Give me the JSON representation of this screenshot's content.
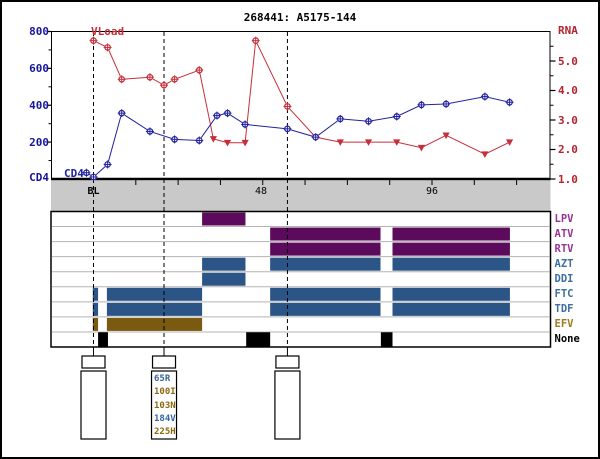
{
  "title": "268441: A5175-144",
  "chart_data": {
    "type": "line",
    "title": "268441: A5175-144",
    "x_axis": {
      "unit": "weeks",
      "labeled_ticks": [
        {
          "week": 0,
          "label": "BL"
        },
        {
          "week": 48,
          "label": "48"
        },
        {
          "week": 96,
          "label": "96"
        }
      ],
      "minor_tick_weeks": [
        12,
        24,
        36,
        48,
        60,
        72,
        84,
        96,
        108,
        120
      ],
      "sample_weeks": [
        0,
        20,
        55
      ]
    },
    "left_axis": {
      "name": "CD4",
      "range": [
        0,
        800
      ],
      "major_ticks": [
        200,
        400,
        600,
        800
      ],
      "minor_ticks": [
        100,
        300,
        500,
        700
      ],
      "color": "#16169a"
    },
    "right_axis": {
      "name": "RNA",
      "range": [
        1,
        6
      ],
      "major_ticks": [
        1,
        2,
        3,
        4,
        5
      ],
      "minor_ticks": [
        1.5,
        2.5,
        3.5,
        4.5,
        5.5
      ],
      "color": "#b5232f"
    },
    "series": [
      {
        "name": "CD4",
        "axis": "left",
        "color": "#2222a0",
        "marker": "open-circle-cross",
        "points": [
          {
            "week": -2,
            "value": 34
          },
          {
            "week": 0,
            "value": 11
          },
          {
            "week": 4,
            "value": 79
          },
          {
            "week": 8,
            "value": 357
          },
          {
            "week": 16,
            "value": 258
          },
          {
            "week": 23,
            "value": 215
          },
          {
            "week": 30,
            "value": 209
          },
          {
            "week": 35,
            "value": 344
          },
          {
            "week": 38,
            "value": 357
          },
          {
            "week": 43,
            "value": 296
          },
          {
            "week": 55,
            "value": 272
          },
          {
            "week": 63,
            "value": 227
          },
          {
            "week": 70,
            "value": 326
          },
          {
            "week": 78,
            "value": 313
          },
          {
            "week": 86,
            "value": 339
          },
          {
            "week": 93,
            "value": 402
          },
          {
            "week": 100,
            "value": 407
          },
          {
            "week": 111,
            "value": 447
          },
          {
            "week": 118,
            "value": 416
          }
        ]
      },
      {
        "name": "VLoad",
        "axis": "right",
        "color": "#c62f3a",
        "points": [
          {
            "week": 0,
            "value": 5.69,
            "marker": "circle"
          },
          {
            "week": 4,
            "value": 5.46,
            "marker": "circle"
          },
          {
            "week": 8,
            "value": 4.38,
            "marker": "circle"
          },
          {
            "week": 16,
            "value": 4.45,
            "marker": "circle"
          },
          {
            "week": 20,
            "value": 4.18,
            "marker": "circle"
          },
          {
            "week": 23,
            "value": 4.38,
            "marker": "circle"
          },
          {
            "week": 30,
            "value": 4.69,
            "marker": "circle"
          },
          {
            "week": 34,
            "value": 2.36,
            "marker": "triangle"
          },
          {
            "week": 38,
            "value": 2.23,
            "marker": "triangle"
          },
          {
            "week": 43,
            "value": 2.23,
            "marker": "triangle"
          },
          {
            "week": 46,
            "value": 5.69,
            "marker": "circle"
          },
          {
            "week": 55,
            "value": 3.46,
            "marker": "circle"
          },
          {
            "week": 63,
            "value": 2.42,
            "marker": "triangle"
          },
          {
            "week": 70,
            "value": 2.25,
            "marker": "triangle"
          },
          {
            "week": 78,
            "value": 2.25,
            "marker": "triangle"
          },
          {
            "week": 86,
            "value": 2.25,
            "marker": "triangle"
          },
          {
            "week": 93,
            "value": 2.06,
            "marker": "triangle"
          },
          {
            "week": 100,
            "value": 2.48,
            "marker": "triangle"
          },
          {
            "week": 111,
            "value": 1.84,
            "marker": "triangle"
          },
          {
            "week": 118,
            "value": 2.25,
            "marker": "triangle"
          }
        ]
      }
    ]
  },
  "timeline": {
    "rows": [
      {
        "label": "LPV",
        "label_color": "#993399",
        "bar_color": "#5c0a5c",
        "segments": [
          [
            30.8,
            43.1
          ]
        ]
      },
      {
        "label": "ATV",
        "label_color": "#993399",
        "bar_color": "#5c0a5c",
        "segments": [
          [
            50.1,
            81.4
          ],
          [
            84.8,
            118.1
          ]
        ]
      },
      {
        "label": "RTV",
        "label_color": "#993399",
        "bar_color": "#5c0a5c",
        "segments": [
          [
            50.1,
            81.4
          ],
          [
            84.8,
            118.1
          ]
        ]
      },
      {
        "label": "AZT",
        "label_color": "#3c6ea0",
        "bar_color": "#2b5587",
        "segments": [
          [
            30.8,
            43.1
          ],
          [
            50.1,
            81.4
          ],
          [
            84.8,
            118.1
          ]
        ]
      },
      {
        "label": "DDI",
        "label_color": "#3c6ea0",
        "bar_color": "#2b5587",
        "segments": [
          [
            30.8,
            43.1
          ]
        ]
      },
      {
        "label": "FTC",
        "label_color": "#3c6ea0",
        "bar_color": "#2b5587",
        "segments": [
          [
            -0.2,
            1.3
          ],
          [
            3.8,
            30.8
          ],
          [
            50.1,
            81.4
          ],
          [
            84.8,
            118.1
          ]
        ]
      },
      {
        "label": "TDF",
        "label_color": "#3c6ea0",
        "bar_color": "#2b5587",
        "segments": [
          [
            -0.2,
            1.3
          ],
          [
            3.8,
            30.8
          ],
          [
            50.1,
            81.4
          ],
          [
            84.8,
            118.1
          ]
        ]
      },
      {
        "label": "EFV",
        "label_color": "#a07c20",
        "bar_color": "#7a5a10",
        "segments": [
          [
            -0.2,
            1.3
          ],
          [
            3.8,
            30.8
          ]
        ]
      },
      {
        "label": "None",
        "label_color": "#000000",
        "bar_color": "#000000",
        "segments": [
          [
            1.3,
            4.1
          ],
          [
            43.3,
            50.1
          ],
          [
            81.5,
            84.8
          ]
        ]
      }
    ]
  },
  "samples": [
    {
      "week": 0,
      "mutations": []
    },
    {
      "week": 20,
      "mutations": [
        {
          "text": "65R",
          "color": "#336699"
        },
        {
          "text": "100I",
          "color": "#8a6a10"
        },
        {
          "text": "103N",
          "color": "#8a6a10"
        },
        {
          "text": "184V",
          "color": "#336699"
        },
        {
          "text": "225H",
          "color": "#8a6a10"
        }
      ]
    },
    {
      "week": 55,
      "mutations": []
    }
  ],
  "colors": {
    "band": "#c9c9c9",
    "panel_grid": "#b3b3b3",
    "dashed_line": "#000000"
  }
}
